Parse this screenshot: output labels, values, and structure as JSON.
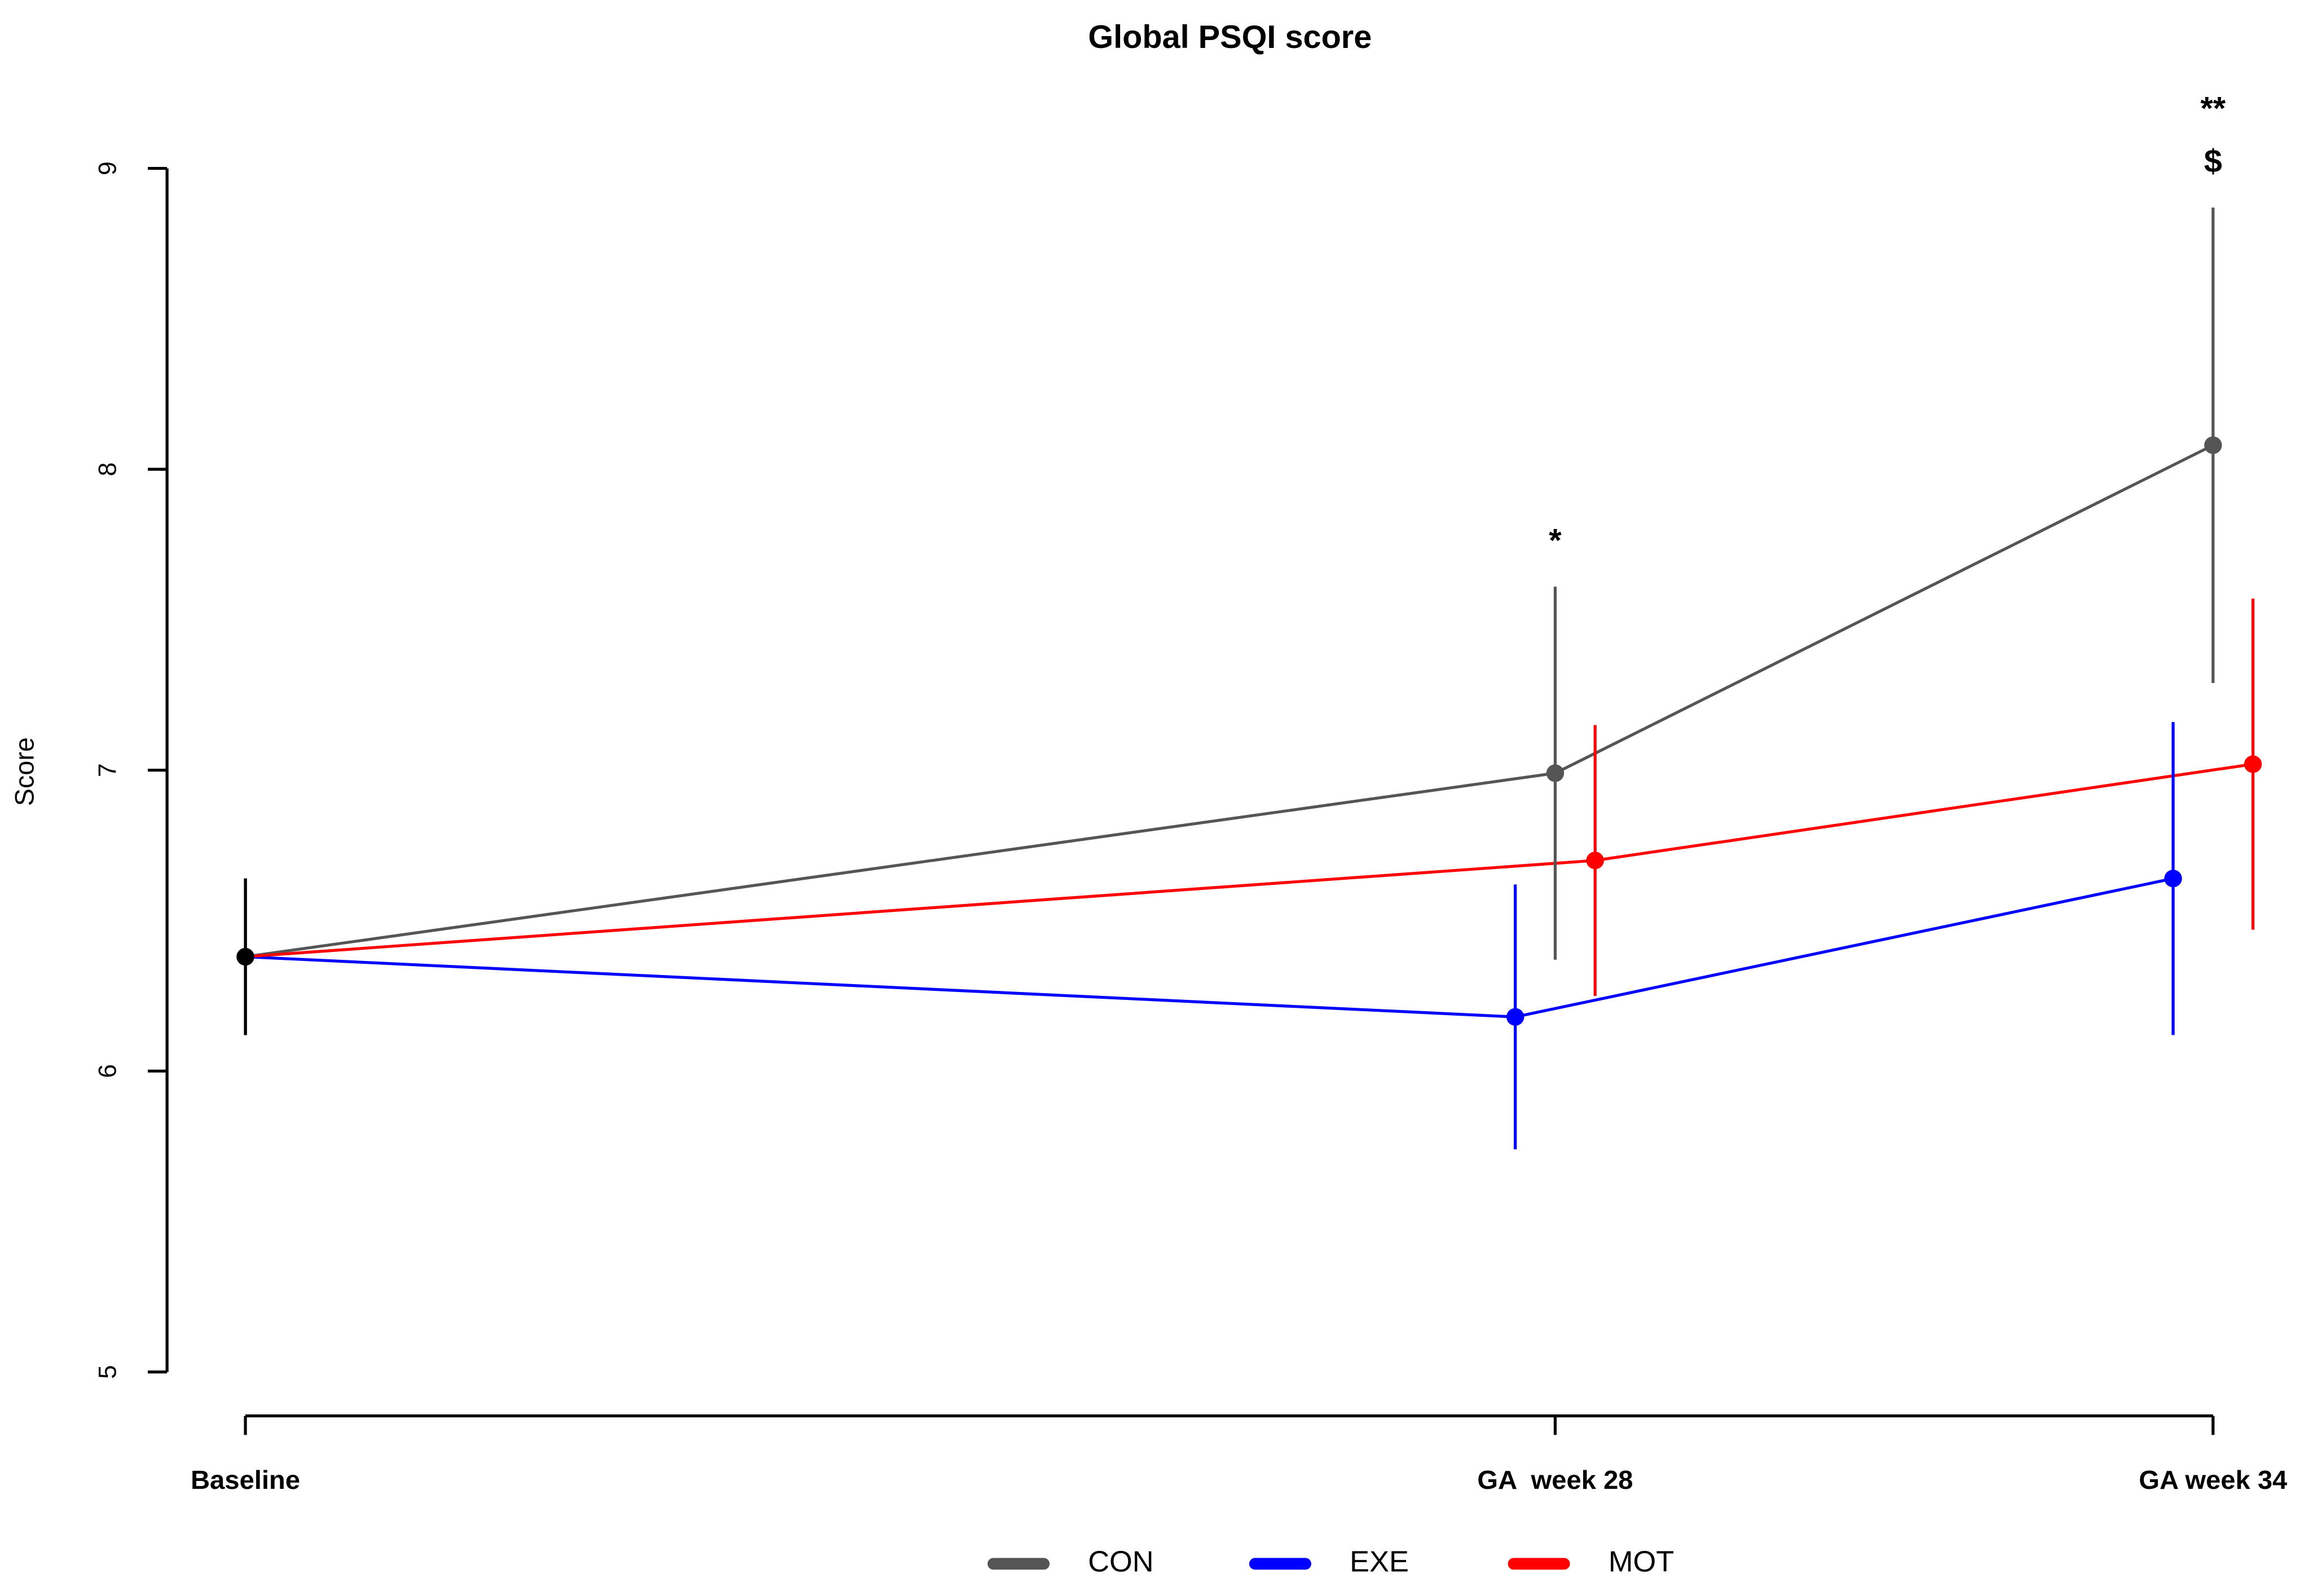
{
  "chart_data": {
    "type": "line",
    "title": "Global PSQI score",
    "y_label": "Score",
    "categories": [
      "Baseline",
      "GA  week 28",
      "GA week 34"
    ],
    "series": [
      {
        "name": "CON",
        "color": "#555555",
        "values": [
          6.38,
          6.99,
          8.08
        ],
        "errors": [
          0.26,
          0.62,
          0.79
        ]
      },
      {
        "name": "EXE",
        "color": "#0000ff",
        "values": [
          6.38,
          6.18,
          6.64
        ],
        "errors": [
          0.26,
          0.44,
          0.52
        ]
      },
      {
        "name": "MOT",
        "color": "#ff0000",
        "values": [
          6.38,
          6.7,
          7.02
        ],
        "errors": [
          0.26,
          0.45,
          0.55
        ]
      }
    ],
    "baseline_color": "#000000",
    "ylim": [
      5,
      9
    ],
    "yticks": [
      5,
      6,
      7,
      8,
      9
    ],
    "annotations": [
      {
        "text": "*",
        "at": "GA  week 28"
      },
      {
        "text": "**",
        "at": "GA week 34"
      },
      {
        "text": "$",
        "at": "GA week 34"
      }
    ],
    "legend": "bottom"
  }
}
